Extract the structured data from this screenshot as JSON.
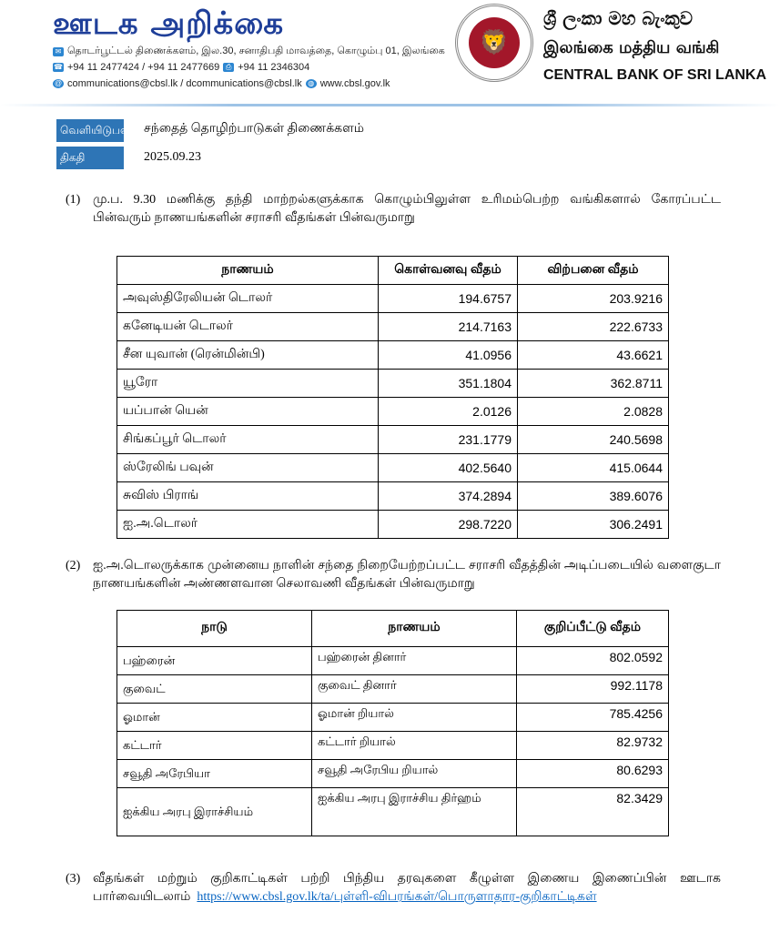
{
  "header": {
    "title": "ஊடக அறிக்கை",
    "address": "தொடர்பூட்டல் திணைக்களம், இல.30, சனாதிபதி மாவத்தை, கொழும்பு 01, இலங்கை",
    "phones": "+94 11 2477424 / +94 11 2477669",
    "fax": "+94 11  2346304",
    "emails": "communications@cbsl.lk / dcommunications@cbsl.lk",
    "website": "www.cbsl.gov.lk",
    "bank_sinhala": "ශ්‍රී ලංකා මහ බැංකුව",
    "bank_tamil": "இலங்கை மத்திய வங்கி",
    "bank_english": "CENTRAL BANK OF SRI LANKA"
  },
  "meta": {
    "issued_by_label": "வெளியிடுபவர்",
    "issued_by": "சந்தைத் தொழிற்பாடுகள் திணைக்களம்",
    "date_label": "திகதி",
    "date": "2025.09.23"
  },
  "section1": {
    "num": "(1)",
    "text": "மு.ப. 9.30 மணிக்கு தந்தி மாற்றல்களுக்காக கொழும்பிலுள்ள உரிமம்பெற்ற வங்கிகளால் கோரப்பட்ட பின்வரும் நாணயங்களின் சராசரி வீதங்கள் பின்வருமாறு",
    "headers": [
      "நாணயம்",
      "கொள்வனவு வீதம்",
      "விற்பனை வீதம்"
    ],
    "rows": [
      [
        "அவுஸ்திரேலியன் டொலர்",
        "194.6757",
        "203.9216"
      ],
      [
        "கனேடியன் டொலர்",
        "214.7163",
        "222.6733"
      ],
      [
        "சீன யுவான் (ரென்மின்பி)",
        "41.0956",
        "43.6621"
      ],
      [
        "யூரோ",
        "351.1804",
        "362.8711"
      ],
      [
        "யப்பான் யென்",
        "2.0126",
        "2.0828"
      ],
      [
        "சிங்கப்பூர் டொலர்",
        "231.1779",
        "240.5698"
      ],
      [
        "ஸ்ரேலிங் பவுன்",
        "402.5640",
        "415.0644"
      ],
      [
        "சுவிஸ் பிராங்",
        "374.2894",
        "389.6076"
      ],
      [
        "ஐ.அ.டொலர்",
        "298.7220",
        "306.2491"
      ]
    ]
  },
  "section2": {
    "num": "(2)",
    "text": "ஐ.அ.டொலருக்காக முன்னைய நாளின் சந்தை நிறையேற்றப்பட்ட சராசரி வீதத்தின் அடிப்படையில் வளைகுடா நாணயங்களின் அண்ணளவான செலாவணி வீதங்கள் பின்வருமாறு",
    "headers": [
      "நாடு",
      "நாணயம்",
      "குறிப்பீட்டு வீதம்"
    ],
    "rows": [
      [
        "பஹ்ரைன்",
        "பஹ்ரைன் தினார்",
        "802.0592"
      ],
      [
        "குவைட்",
        "குவைட் தினார்",
        "992.1178"
      ],
      [
        "ஓமான்",
        "ஓமான் றியால்",
        "785.4256"
      ],
      [
        "கட்டார்",
        "கட்டார் றியால்",
        "82.9732"
      ],
      [
        "சவூதி அரேபியா",
        "சவூதி அரேபிய றியால்",
        "80.6293"
      ],
      [
        "ஐக்கிய அரபு இராச்சியம்",
        "ஐக்கிய அரபு இராச்சிய திர்ஹம்",
        "82.3429"
      ]
    ]
  },
  "section3": {
    "num": "(3)",
    "text": "வீதங்கள் மற்றும் குறிகாட்டிகள் பற்றி பிந்திய தரவுகளை கீழுள்ள இணைய இணைப்பின் ஊடாக பார்வையிடலாம்",
    "link": "https://www.cbsl.gov.lk/ta/புள்ளி-விபரங்கள்/பொருளாதார-குறிகாட்டிகள்"
  }
}
